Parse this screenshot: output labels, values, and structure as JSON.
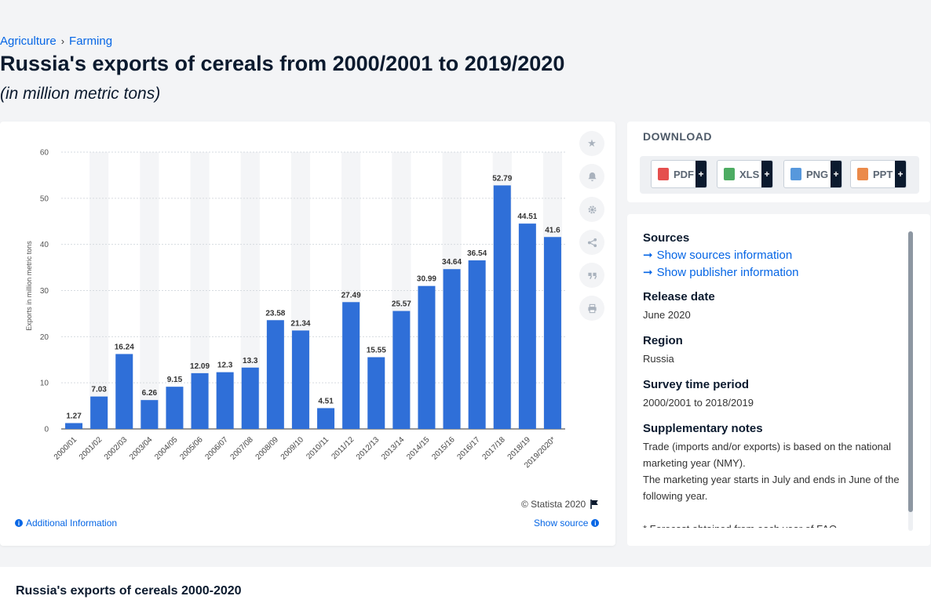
{
  "breadcrumb": {
    "items": [
      "Agriculture",
      "Farming"
    ],
    "sep": "›"
  },
  "page": {
    "title": "Russia's exports of cereals from 2000/2001 to 2019/2020",
    "subtitle": "(in million metric tons)"
  },
  "chart_data": {
    "type": "bar",
    "categories": [
      "2000/01",
      "2001/02",
      "2002/03",
      "2003/04",
      "2004/05",
      "2005/06",
      "2006/07",
      "2007/08",
      "2008/09",
      "2009/10",
      "2010/11",
      "2011/12",
      "2012/13",
      "2013/14",
      "2014/15",
      "2015/16",
      "2016/17",
      "2017/18",
      "2018/19",
      "2019/2020*"
    ],
    "values": [
      1.27,
      7.03,
      16.24,
      6.26,
      9.15,
      12.09,
      12.3,
      13.3,
      23.58,
      21.34,
      4.51,
      27.49,
      15.55,
      25.57,
      30.99,
      34.64,
      36.54,
      52.79,
      44.51,
      41.6
    ],
    "data_labels": [
      "1.27",
      "7.03",
      "16.24",
      "6.26",
      "9.15",
      "12.09",
      "12.3",
      "13.3",
      "23.58",
      "21.34",
      "4.51",
      "27.49",
      "15.55",
      "25.57",
      "30.99",
      "34.64",
      "36.54",
      "52.79",
      "44.51",
      "41.6"
    ],
    "ylabel": "Exports in million metric tons",
    "ylim": [
      0,
      60
    ],
    "yticks": [
      "0",
      "10",
      "20",
      "30",
      "40",
      "50",
      "60"
    ],
    "bar_color": "#2f6fd8",
    "grid": true
  },
  "chart_footer": {
    "copyright": "© Statista 2020",
    "additional_info": "Additional Information",
    "show_source": "Show source"
  },
  "download": {
    "title": "DOWNLOAD",
    "buttons": [
      {
        "label": "PDF",
        "color": "#e0302f"
      },
      {
        "label": "XLS",
        "color": "#2e9d46"
      },
      {
        "label": "PNG",
        "color": "#3a86d6"
      },
      {
        "label": "PPT",
        "color": "#e8752a"
      }
    ],
    "plus": "+"
  },
  "meta": {
    "sources_head": "Sources",
    "show_sources": "Show sources information",
    "show_publisher": "Show publisher information",
    "release_head": "Release date",
    "release_value": "June 2020",
    "region_head": "Region",
    "region_value": "Russia",
    "survey_head": "Survey time period",
    "survey_value": "2000/2001 to 2018/2019",
    "notes_head": "Supplementary notes",
    "notes_1": "Trade (imports and/or exports) is based on the national marketing year (NMY).",
    "notes_2": "The marketing year starts in July and ends in June of the following year.",
    "notes_3": "* Forecast obtained from each year of FAO"
  },
  "bottom": {
    "title": "Russia's exports of cereals 2000-2020"
  }
}
